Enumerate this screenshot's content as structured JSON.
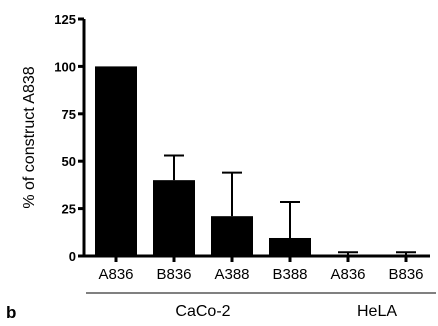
{
  "chart_data": {
    "type": "bar",
    "panel_label": "b",
    "ylabel": "% of construct A838",
    "xlabel": "",
    "ylim": [
      0,
      125
    ],
    "yticks": [
      0,
      25,
      50,
      75,
      100,
      125
    ],
    "categories": [
      "A836",
      "B836",
      "A388",
      "B388",
      "A836",
      "B836"
    ],
    "values": [
      100,
      40,
      21,
      9.5,
      0,
      0
    ],
    "error_upper": [
      0,
      13,
      23,
      19,
      2,
      2
    ],
    "groups": [
      {
        "label": "CaCo-2",
        "categories": [
          0,
          1,
          2,
          3
        ]
      },
      {
        "label": "HeLA",
        "categories": [
          4,
          5
        ]
      }
    ],
    "bar_color": "#000000",
    "grid": false
  }
}
